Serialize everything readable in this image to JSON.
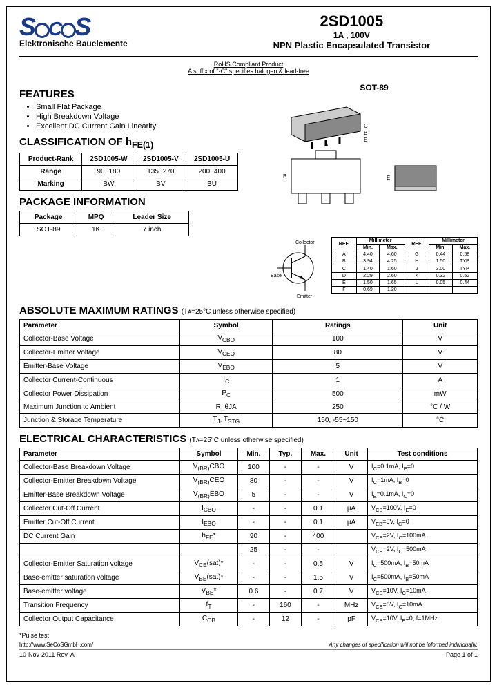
{
  "header": {
    "logo_sub": "Elektronische Bauelemente",
    "part_no": "2SD1005",
    "spec": "1A , 100V",
    "desc": "NPN Plastic Encapsulated Transistor"
  },
  "rohs": {
    "line1": "RoHS Compliant Product",
    "line2": "A suffix of \"-C\" specifies halogen & lead-free"
  },
  "features": {
    "title": "FEATURES",
    "items": [
      "Small Flat Package",
      "High Breakdown Voltage",
      "Excellent DC Current Gain Linearity"
    ]
  },
  "hfe": {
    "title": "CLASSIFICATION OF h",
    "sub": "FE(1)",
    "headers": [
      "Product-Rank",
      "2SD1005-W",
      "2SD1005-V",
      "2SD1005-U"
    ],
    "rows": [
      [
        "Range",
        "90~180",
        "135~270",
        "200~400"
      ],
      [
        "Marking",
        "BW",
        "BV",
        "BU"
      ]
    ]
  },
  "pkg": {
    "title": "PACKAGE INFORMATION",
    "headers": [
      "Package",
      "MPQ",
      "Leader Size"
    ],
    "row": [
      "SOT-89",
      "1K",
      "7 inch"
    ]
  },
  "pkg_label": "SOT-89",
  "pin_labels": {
    "collector": "Collector",
    "base": "Base",
    "emitter": "Emitter"
  },
  "dims": {
    "headers": [
      "REF.",
      "Min.",
      "Max.",
      "REF.",
      "Min.",
      "Max."
    ],
    "unit": "Millimeter",
    "rows": [
      [
        "A",
        "4.40",
        "4.60",
        "G",
        "0.44",
        "0.58"
      ],
      [
        "B",
        "3.94",
        "4.25",
        "H",
        "1.50",
        "TYP."
      ],
      [
        "C",
        "1.40",
        "1.60",
        "J",
        "3.00",
        "TYP."
      ],
      [
        "D",
        "2.29",
        "2.60",
        "K",
        "0.32",
        "0.52"
      ],
      [
        "E",
        "1.50",
        "1.65",
        "L",
        "0.05",
        "0.44"
      ],
      [
        "F",
        "0.69",
        "1.20",
        "",
        "",
        ""
      ]
    ]
  },
  "abs": {
    "title": "ABSOLUTE MAXIMUM RATINGS",
    "sub": "(Tᴀ=25°C unless otherwise specified)",
    "headers": [
      "Parameter",
      "Symbol",
      "Ratings",
      "Unit"
    ],
    "rows": [
      [
        "Collector-Base Voltage",
        "V_CBO",
        "100",
        "V"
      ],
      [
        "Collector-Emitter Voltage",
        "V_CEO",
        "80",
        "V"
      ],
      [
        "Emitter-Base Voltage",
        "V_EBO",
        "5",
        "V"
      ],
      [
        "Collector Current-Continuous",
        "I_C",
        "1",
        "A"
      ],
      [
        "Collector Power Dissipation",
        "P_C",
        "500",
        "mW"
      ],
      [
        "Maximum Junction to Ambient",
        "R_θJA",
        "250",
        "°C / W"
      ],
      [
        "Junction & Storage Temperature",
        "T_J, T_STG",
        "150, -55~150",
        "°C"
      ]
    ]
  },
  "elec": {
    "title": "ELECTRICAL CHARACTERISTICS",
    "sub": "(Tᴀ=25°C unless otherwise specified)",
    "headers": [
      "Parameter",
      "Symbol",
      "Min.",
      "Typ.",
      "Max.",
      "Unit",
      "Test conditions"
    ],
    "rows": [
      [
        "Collector-Base Breakdown Voltage",
        "V_(BR)CBO",
        "100",
        "-",
        "-",
        "V",
        "I_C=0.1mA, I_E=0"
      ],
      [
        "Collector-Emitter Breakdown Voltage",
        "V_(BR)CEO",
        "80",
        "-",
        "-",
        "V",
        "I_C=1mA, I_B=0"
      ],
      [
        "Emitter-Base Breakdown Voltage",
        "V_(BR)EBO",
        "5",
        "-",
        "-",
        "V",
        "I_E=0.1mA, I_C=0"
      ],
      [
        "Collector Cut-Off Current",
        "I_CBO",
        "-",
        "-",
        "0.1",
        "µA",
        "V_CB=100V, I_E=0"
      ],
      [
        "Emitter Cut-Off Current",
        "I_EBO",
        "-",
        "-",
        "0.1",
        "µA",
        "V_EB=5V, I_C=0"
      ],
      [
        "DC Current Gain",
        "h_FE*",
        "90",
        "-",
        "400",
        "",
        "V_CE=2V, I_C=100mA"
      ],
      [
        "",
        "",
        "25",
        "-",
        "-",
        "",
        "V_CE=2V, I_C=500mA"
      ],
      [
        "Collector-Emitter Saturation voltage",
        "V_CE(sat)*",
        "-",
        "-",
        "0.5",
        "V",
        "I_C=500mA, I_B=50mA"
      ],
      [
        "Base-emitter saturation voltage",
        "V_BE(sat)*",
        "-",
        "-",
        "1.5",
        "V",
        "I_C=500mA, I_B=50mA"
      ],
      [
        "Base-emitter voltage",
        "V_BE*",
        "0.6",
        "-",
        "0.7",
        "V",
        "V_CE=10V, I_C=10mA"
      ],
      [
        "Transition Frequency",
        "f_T",
        "-",
        "160",
        "-",
        "MHz",
        "V_CE=5V, I_C=10mA"
      ],
      [
        "Collector Output Capacitance",
        "C_OB",
        "-",
        "12",
        "-",
        "pF",
        "V_CB=10V, I_E=0, f=1MHz"
      ]
    ],
    "note": "*Pulse test"
  },
  "footer": {
    "url": "http://www.SeCoSGmbH.com/",
    "disclaimer": "Any changes of specification will not be informed individually.",
    "date": "10-Nov-2011 Rev. A",
    "page": "Page 1 of 1"
  }
}
